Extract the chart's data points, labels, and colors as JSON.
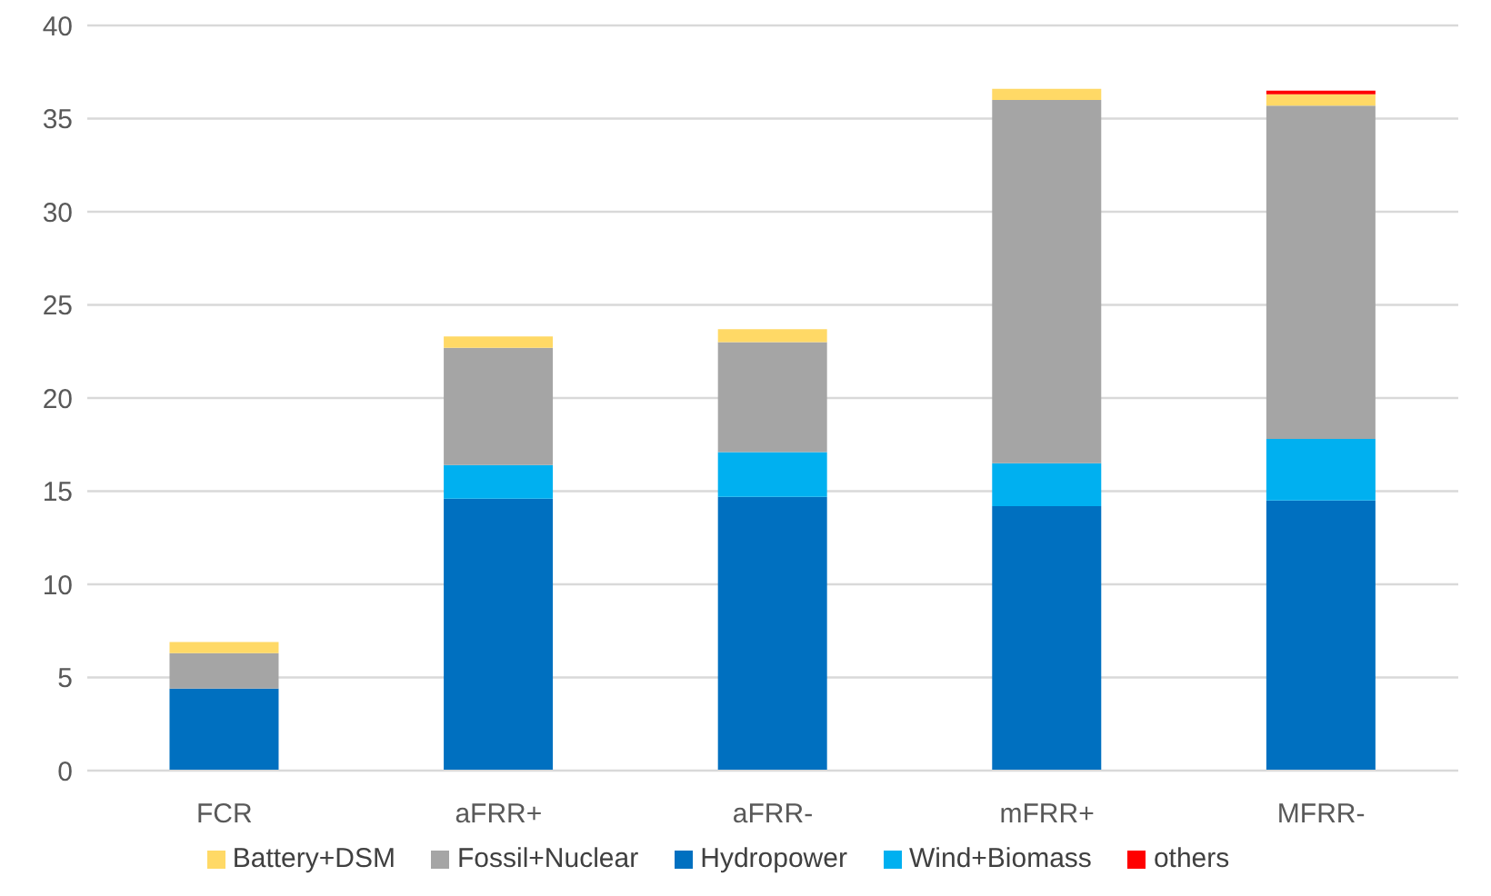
{
  "chart_data": {
    "type": "bar",
    "stacked": true,
    "categories": [
      "FCR",
      "aFRR+",
      "aFRR-",
      "mFRR+",
      "MFRR-"
    ],
    "series": [
      {
        "name": "Hydropower",
        "color": "#0070c0",
        "values": [
          4.4,
          14.6,
          14.7,
          14.2,
          14.5
        ]
      },
      {
        "name": "Wind+Biomass",
        "color": "#00b0f0",
        "values": [
          0,
          1.8,
          2.4,
          2.3,
          3.3
        ]
      },
      {
        "name": "Fossil+Nuclear",
        "color": "#a5a5a5",
        "values": [
          1.9,
          6.3,
          5.9,
          19.5,
          17.9
        ]
      },
      {
        "name": "Battery+DSM",
        "color": "#ffd966",
        "values": [
          0.6,
          0.6,
          0.7,
          0.6,
          0.6
        ]
      },
      {
        "name": "others",
        "color": "#ff0000",
        "values": [
          0,
          0,
          0,
          0,
          0.2
        ]
      }
    ],
    "ylim": [
      0,
      40
    ],
    "yticks": [
      0,
      5,
      10,
      15,
      20,
      25,
      30,
      35,
      40
    ],
    "grid": "y",
    "legend": "bottom"
  }
}
